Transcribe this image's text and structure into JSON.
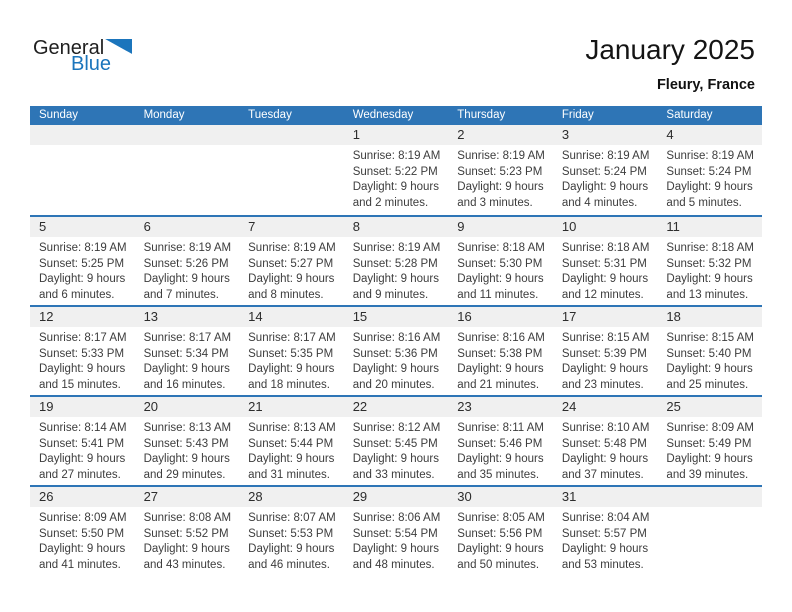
{
  "logo": {
    "general": "General",
    "blue": "Blue"
  },
  "header": {
    "title": "January 2025",
    "subtitle": "Fleury, France"
  },
  "colors": {
    "header_bg": "#2e75b6",
    "week_divider": "#2e75b6",
    "day_number_band_bg": "#f0f0f0",
    "logo_blue": "#1b75bc",
    "header_text": "#ffffff"
  },
  "calendar": {
    "weekdays": [
      "Sunday",
      "Monday",
      "Tuesday",
      "Wednesday",
      "Thursday",
      "Friday",
      "Saturday"
    ],
    "weeks": [
      {
        "days": [
          {
            "num": "",
            "lines": []
          },
          {
            "num": "",
            "lines": []
          },
          {
            "num": "",
            "lines": []
          },
          {
            "num": "1",
            "lines": [
              "Sunrise: 8:19 AM",
              "Sunset: 5:22 PM",
              "Daylight: 9 hours",
              "and 2 minutes."
            ]
          },
          {
            "num": "2",
            "lines": [
              "Sunrise: 8:19 AM",
              "Sunset: 5:23 PM",
              "Daylight: 9 hours",
              "and 3 minutes."
            ]
          },
          {
            "num": "3",
            "lines": [
              "Sunrise: 8:19 AM",
              "Sunset: 5:24 PM",
              "Daylight: 9 hours",
              "and 4 minutes."
            ]
          },
          {
            "num": "4",
            "lines": [
              "Sunrise: 8:19 AM",
              "Sunset: 5:24 PM",
              "Daylight: 9 hours",
              "and 5 minutes."
            ]
          }
        ]
      },
      {
        "days": [
          {
            "num": "5",
            "lines": [
              "Sunrise: 8:19 AM",
              "Sunset: 5:25 PM",
              "Daylight: 9 hours",
              "and 6 minutes."
            ]
          },
          {
            "num": "6",
            "lines": [
              "Sunrise: 8:19 AM",
              "Sunset: 5:26 PM",
              "Daylight: 9 hours",
              "and 7 minutes."
            ]
          },
          {
            "num": "7",
            "lines": [
              "Sunrise: 8:19 AM",
              "Sunset: 5:27 PM",
              "Daylight: 9 hours",
              "and 8 minutes."
            ]
          },
          {
            "num": "8",
            "lines": [
              "Sunrise: 8:19 AM",
              "Sunset: 5:28 PM",
              "Daylight: 9 hours",
              "and 9 minutes."
            ]
          },
          {
            "num": "9",
            "lines": [
              "Sunrise: 8:18 AM",
              "Sunset: 5:30 PM",
              "Daylight: 9 hours",
              "and 11 minutes."
            ]
          },
          {
            "num": "10",
            "lines": [
              "Sunrise: 8:18 AM",
              "Sunset: 5:31 PM",
              "Daylight: 9 hours",
              "and 12 minutes."
            ]
          },
          {
            "num": "11",
            "lines": [
              "Sunrise: 8:18 AM",
              "Sunset: 5:32 PM",
              "Daylight: 9 hours",
              "and 13 minutes."
            ]
          }
        ]
      },
      {
        "days": [
          {
            "num": "12",
            "lines": [
              "Sunrise: 8:17 AM",
              "Sunset: 5:33 PM",
              "Daylight: 9 hours",
              "and 15 minutes."
            ]
          },
          {
            "num": "13",
            "lines": [
              "Sunrise: 8:17 AM",
              "Sunset: 5:34 PM",
              "Daylight: 9 hours",
              "and 16 minutes."
            ]
          },
          {
            "num": "14",
            "lines": [
              "Sunrise: 8:17 AM",
              "Sunset: 5:35 PM",
              "Daylight: 9 hours",
              "and 18 minutes."
            ]
          },
          {
            "num": "15",
            "lines": [
              "Sunrise: 8:16 AM",
              "Sunset: 5:36 PM",
              "Daylight: 9 hours",
              "and 20 minutes."
            ]
          },
          {
            "num": "16",
            "lines": [
              "Sunrise: 8:16 AM",
              "Sunset: 5:38 PM",
              "Daylight: 9 hours",
              "and 21 minutes."
            ]
          },
          {
            "num": "17",
            "lines": [
              "Sunrise: 8:15 AM",
              "Sunset: 5:39 PM",
              "Daylight: 9 hours",
              "and 23 minutes."
            ]
          },
          {
            "num": "18",
            "lines": [
              "Sunrise: 8:15 AM",
              "Sunset: 5:40 PM",
              "Daylight: 9 hours",
              "and 25 minutes."
            ]
          }
        ]
      },
      {
        "days": [
          {
            "num": "19",
            "lines": [
              "Sunrise: 8:14 AM",
              "Sunset: 5:41 PM",
              "Daylight: 9 hours",
              "and 27 minutes."
            ]
          },
          {
            "num": "20",
            "lines": [
              "Sunrise: 8:13 AM",
              "Sunset: 5:43 PM",
              "Daylight: 9 hours",
              "and 29 minutes."
            ]
          },
          {
            "num": "21",
            "lines": [
              "Sunrise: 8:13 AM",
              "Sunset: 5:44 PM",
              "Daylight: 9 hours",
              "and 31 minutes."
            ]
          },
          {
            "num": "22",
            "lines": [
              "Sunrise: 8:12 AM",
              "Sunset: 5:45 PM",
              "Daylight: 9 hours",
              "and 33 minutes."
            ]
          },
          {
            "num": "23",
            "lines": [
              "Sunrise: 8:11 AM",
              "Sunset: 5:46 PM",
              "Daylight: 9 hours",
              "and 35 minutes."
            ]
          },
          {
            "num": "24",
            "lines": [
              "Sunrise: 8:10 AM",
              "Sunset: 5:48 PM",
              "Daylight: 9 hours",
              "and 37 minutes."
            ]
          },
          {
            "num": "25",
            "lines": [
              "Sunrise: 8:09 AM",
              "Sunset: 5:49 PM",
              "Daylight: 9 hours",
              "and 39 minutes."
            ]
          }
        ]
      },
      {
        "days": [
          {
            "num": "26",
            "lines": [
              "Sunrise: 8:09 AM",
              "Sunset: 5:50 PM",
              "Daylight: 9 hours",
              "and 41 minutes."
            ]
          },
          {
            "num": "27",
            "lines": [
              "Sunrise: 8:08 AM",
              "Sunset: 5:52 PM",
              "Daylight: 9 hours",
              "and 43 minutes."
            ]
          },
          {
            "num": "28",
            "lines": [
              "Sunrise: 8:07 AM",
              "Sunset: 5:53 PM",
              "Daylight: 9 hours",
              "and 46 minutes."
            ]
          },
          {
            "num": "29",
            "lines": [
              "Sunrise: 8:06 AM",
              "Sunset: 5:54 PM",
              "Daylight: 9 hours",
              "and 48 minutes."
            ]
          },
          {
            "num": "30",
            "lines": [
              "Sunrise: 8:05 AM",
              "Sunset: 5:56 PM",
              "Daylight: 9 hours",
              "and 50 minutes."
            ]
          },
          {
            "num": "31",
            "lines": [
              "Sunrise: 8:04 AM",
              "Sunset: 5:57 PM",
              "Daylight: 9 hours",
              "and 53 minutes."
            ]
          },
          {
            "num": "",
            "lines": []
          }
        ]
      }
    ]
  }
}
